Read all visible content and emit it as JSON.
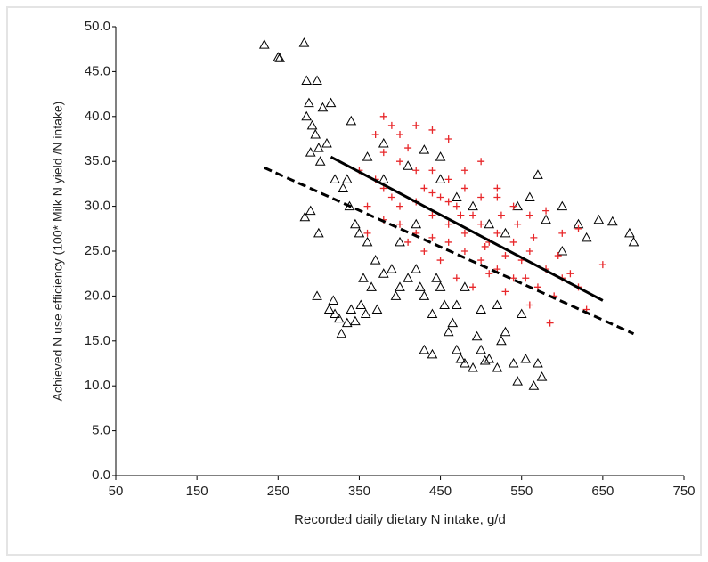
{
  "chart_data": {
    "type": "scatter",
    "x_label": "Recorded daily dietary N intake, g/d",
    "y_label": "Achieved N use efficiency (100* Milk N yield /N intake)",
    "xlim": [
      50,
      750
    ],
    "xticks": [
      50,
      150,
      250,
      350,
      450,
      550,
      650,
      750
    ],
    "ylim": [
      0,
      50
    ],
    "yticks": [
      {
        "value": 0,
        "label": "0.0"
      },
      {
        "value": 5,
        "label": "5.0"
      },
      {
        "value": 10,
        "label": "10.0"
      },
      {
        "value": 15,
        "label": "15.0"
      },
      {
        "value": 20,
        "label": "20.0"
      },
      {
        "value": 25,
        "label": "25.0"
      },
      {
        "value": 30,
        "label": "30.0"
      },
      {
        "value": 35,
        "label": "35.0"
      },
      {
        "value": 40,
        "label": "40.0"
      },
      {
        "value": 45,
        "label": "45.0"
      },
      {
        "value": 50,
        "label": "50.0"
      }
    ],
    "series": [
      {
        "marker": "triangle",
        "color": "#000000",
        "x": [
          233,
          250,
          252,
          282,
          285,
          298,
          285,
          288,
          292,
          296,
          300,
          290,
          302,
          283,
          290,
          300,
          298,
          313,
          318,
          320,
          325,
          328,
          335,
          340,
          345,
          352,
          358,
          372,
          305,
          315,
          310,
          320,
          330,
          338,
          345,
          350,
          360,
          355,
          365,
          370,
          380,
          390,
          395,
          400,
          410,
          420,
          425,
          430,
          440,
          445,
          450,
          455,
          460,
          465,
          470,
          475,
          480,
          490,
          495,
          500,
          505,
          510,
          520,
          525,
          530,
          540,
          545,
          555,
          565,
          570,
          575,
          440,
          430,
          400,
          420,
          450,
          470,
          490,
          510,
          530,
          545,
          560,
          570,
          580,
          600,
          620,
          645,
          662,
          683,
          688,
          630,
          600,
          470,
          480,
          500,
          520,
          550,
          335,
          340,
          360,
          380,
          410,
          430,
          450,
          380
        ],
        "values": [
          48,
          46.6,
          46.5,
          48.2,
          44,
          44,
          40,
          41.5,
          39,
          38,
          36.5,
          36,
          35,
          28.8,
          29.5,
          27,
          20,
          18.5,
          19.5,
          18,
          17.5,
          15.8,
          17,
          18.5,
          17.2,
          19,
          18,
          18.5,
          41,
          41.5,
          37,
          33,
          32,
          30,
          28,
          27,
          26,
          22,
          21,
          24,
          22.5,
          23,
          20,
          21,
          22,
          23,
          21,
          20,
          18,
          22,
          21,
          19,
          16,
          17,
          14,
          13,
          12.5,
          12,
          15.5,
          14,
          12.8,
          13,
          12,
          15,
          16,
          12.5,
          10.5,
          13,
          10,
          12.5,
          11,
          13.5,
          14,
          26,
          28,
          33,
          31,
          30,
          28,
          27,
          30,
          31,
          33.5,
          28.5,
          30,
          28,
          28.5,
          28.3,
          27,
          26,
          26.5,
          25,
          19,
          21,
          18.5,
          19,
          18,
          33,
          39.5,
          35.5,
          37,
          34.5,
          36.3,
          35.5,
          33
        ]
      },
      {
        "marker": "plus",
        "color": "#e8282b",
        "x": [
          380,
          390,
          400,
          420,
          440,
          460,
          380,
          400,
          420,
          440,
          460,
          480,
          500,
          520,
          540,
          560,
          580,
          600,
          620,
          650,
          380,
          400,
          420,
          440,
          460,
          480,
          500,
          520,
          540,
          560,
          580,
          600,
          620,
          630,
          585,
          560,
          540,
          520,
          500,
          480,
          460,
          440,
          420,
          400,
          380,
          360,
          350,
          370,
          410,
          430,
          450,
          470,
          490,
          510,
          530,
          550,
          570,
          590,
          610,
          450,
          470,
          490,
          510,
          530,
          430,
          410,
          390,
          370,
          360,
          545,
          565,
          500,
          520,
          480,
          460,
          440,
          475,
          505,
          555,
          595,
          525
        ],
        "values": [
          40,
          39,
          38,
          39,
          38.5,
          37.5,
          36,
          35,
          34,
          34,
          33,
          32,
          31,
          32,
          30,
          29,
          29.5,
          27,
          27.5,
          23.5,
          32,
          30,
          30.5,
          29,
          28,
          27,
          28,
          27,
          26,
          25,
          23,
          22,
          21,
          18.5,
          17,
          19,
          22,
          23,
          24,
          25,
          26,
          26.5,
          27,
          28,
          28.5,
          30,
          34,
          38,
          36.5,
          32,
          31,
          30,
          29,
          26,
          24.5,
          24,
          21,
          20,
          22.5,
          24,
          22,
          21,
          22.5,
          20.5,
          25,
          26,
          31,
          33,
          27,
          28,
          26.5,
          35,
          31,
          34,
          30.5,
          31.5,
          29,
          25.5,
          22,
          24.5,
          29
        ]
      },
      {
        "marker": "line",
        "dash": "solid",
        "color": "#000000",
        "x": [
          315,
          650
        ],
        "values": [
          35.5,
          19.5
        ]
      },
      {
        "marker": "line",
        "dash": "dashed",
        "color": "#000000",
        "x": [
          233,
          688
        ],
        "values": [
          34.3,
          15.8
        ]
      }
    ]
  }
}
